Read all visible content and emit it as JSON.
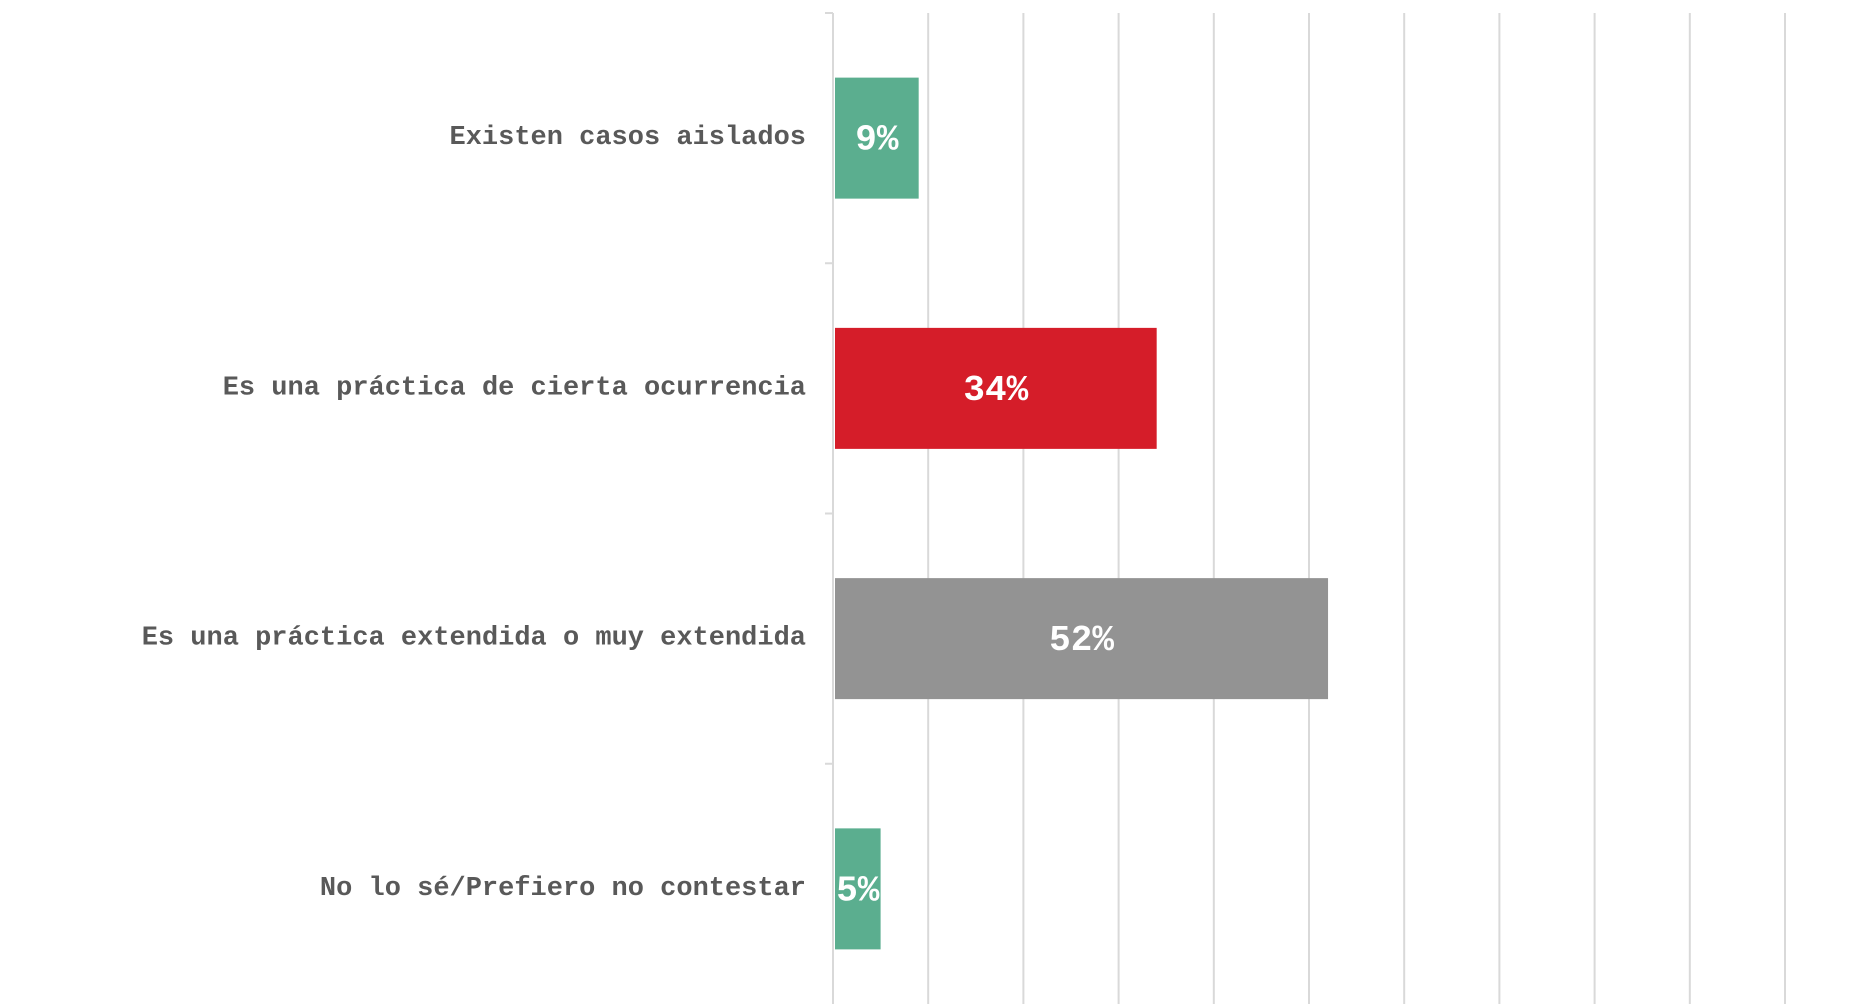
{
  "chart_data": {
    "type": "bar",
    "orientation": "horizontal",
    "categories": [
      "Existen casos aislados",
      "Es una práctica de cierta ocurrencia",
      "Es una práctica extendida o muy extendida",
      "No lo sé/Prefiero no contestar"
    ],
    "values": [
      9,
      34,
      52,
      5
    ],
    "value_labels": [
      "9%",
      "34%",
      "52%",
      "5%"
    ],
    "bar_colors": [
      "#5BAE8F",
      "#D51D29",
      "#939393",
      "#5BAE8F"
    ],
    "xlim": [
      0,
      100
    ],
    "grid": true,
    "gridline_color": "#d9d9d9",
    "label_color": "#595959",
    "title": "",
    "xlabel": "",
    "ylabel": ""
  }
}
